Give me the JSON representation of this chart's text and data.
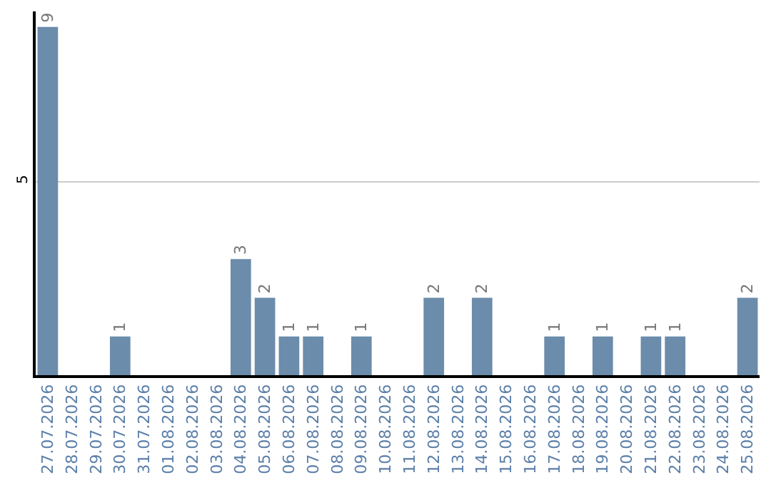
{
  "chart_data": {
    "type": "bar",
    "categories": [
      "27.07.2026",
      "28.07.2026",
      "29.07.2026",
      "30.07.2026",
      "31.07.2026",
      "01.08.2026",
      "02.08.2026",
      "03.08.2026",
      "04.08.2026",
      "05.08.2026",
      "06.08.2026",
      "07.08.2026",
      "08.08.2026",
      "09.08.2026",
      "10.08.2026",
      "11.08.2026",
      "12.08.2026",
      "13.08.2026",
      "14.08.2026",
      "15.08.2026",
      "16.08.2026",
      "17.08.2026",
      "18.08.2026",
      "19.08.2026",
      "20.08.2026",
      "21.08.2026",
      "22.08.2026",
      "23.08.2026",
      "24.08.2026",
      "25.08.2026"
    ],
    "values": [
      9,
      0,
      0,
      1,
      0,
      0,
      0,
      0,
      3,
      2,
      1,
      1,
      0,
      1,
      0,
      0,
      2,
      0,
      2,
      0,
      0,
      1,
      0,
      1,
      0,
      1,
      1,
      0,
      0,
      2
    ],
    "value_labels": [
      "9",
      null,
      null,
      "1",
      null,
      null,
      null,
      null,
      "3",
      "2",
      "1",
      "1",
      null,
      "1",
      null,
      null,
      "2",
      null,
      "2",
      null,
      null,
      "1",
      null,
      "1",
      null,
      "1",
      "1",
      null,
      null,
      "2"
    ],
    "color": "#6b8cab",
    "ylim": [
      0,
      9.4
    ],
    "yticks": [
      5
    ],
    "grid": "y",
    "legend": false
  }
}
